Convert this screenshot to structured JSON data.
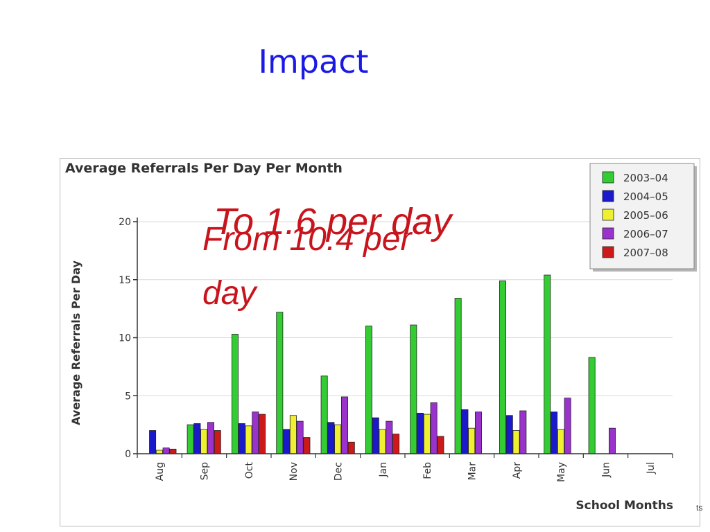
{
  "slide": {
    "title": "Impact",
    "overlay_to": "To 1.6 per day",
    "overlay_from_line1": "From 10.4 per",
    "overlay_from_line2": "day",
    "corner_fragment": "ts"
  },
  "chart_data": {
    "type": "bar",
    "title": "Average Referrals Per Day Per Month",
    "xlabel": "School Months",
    "ylabel": "Average Referrals Per Day",
    "ylim": [
      0,
      20
    ],
    "yticks": [
      0,
      5,
      10,
      15,
      20
    ],
    "grid": true,
    "legend_position": "top-right",
    "categories": [
      "Aug",
      "Sep",
      "Oct",
      "Nov",
      "Dec",
      "Jan",
      "Feb",
      "Mar",
      "Apr",
      "May",
      "Jun",
      "Jul"
    ],
    "series": [
      {
        "name": "2003–04",
        "color": "#33cc33",
        "values": [
          null,
          2.5,
          10.3,
          12.2,
          6.7,
          11.0,
          11.1,
          13.4,
          14.9,
          15.4,
          8.3,
          null
        ]
      },
      {
        "name": "2004–05",
        "color": "#1a1acc",
        "values": [
          2.0,
          2.6,
          2.6,
          2.1,
          2.7,
          3.1,
          3.5,
          3.8,
          3.3,
          3.6,
          null,
          null
        ]
      },
      {
        "name": "2005–06",
        "color": "#f0f033",
        "values": [
          0.3,
          2.1,
          2.4,
          3.3,
          2.5,
          2.1,
          3.4,
          2.2,
          2.0,
          2.1,
          null,
          null
        ]
      },
      {
        "name": "2006–07",
        "color": "#9933cc",
        "values": [
          0.5,
          2.7,
          3.6,
          2.8,
          4.9,
          2.8,
          4.4,
          3.6,
          3.7,
          4.8,
          2.2,
          null
        ]
      },
      {
        "name": "2007–08",
        "color": "#cc1a1a",
        "values": [
          0.4,
          2.0,
          3.4,
          1.4,
          1.0,
          1.7,
          1.5,
          null,
          null,
          null,
          null,
          null
        ]
      }
    ]
  }
}
